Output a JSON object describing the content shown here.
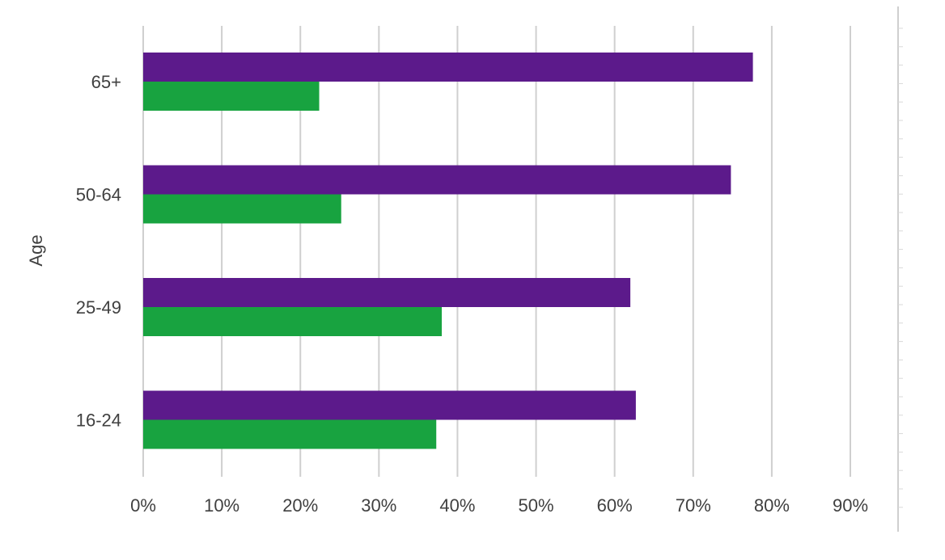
{
  "chart_data": {
    "type": "bar",
    "orientation": "horizontal",
    "ylabel": "Age",
    "xlabel": "",
    "categories": [
      "16-24",
      "25-49",
      "50-64",
      "65+"
    ],
    "series": [
      {
        "values": [
          0.627,
          0.62,
          0.748,
          0.776
        ],
        "color": "#5c1a8b"
      },
      {
        "values": [
          0.373,
          0.38,
          0.252,
          0.224
        ],
        "color": "#18a340"
      }
    ],
    "xlim": [
      0,
      0.9
    ],
    "xticks": [
      "0%",
      "10%",
      "20%",
      "30%",
      "40%",
      "50%",
      "60%",
      "70%",
      "80%",
      "90%"
    ],
    "grid": true,
    "legend": "none"
  }
}
